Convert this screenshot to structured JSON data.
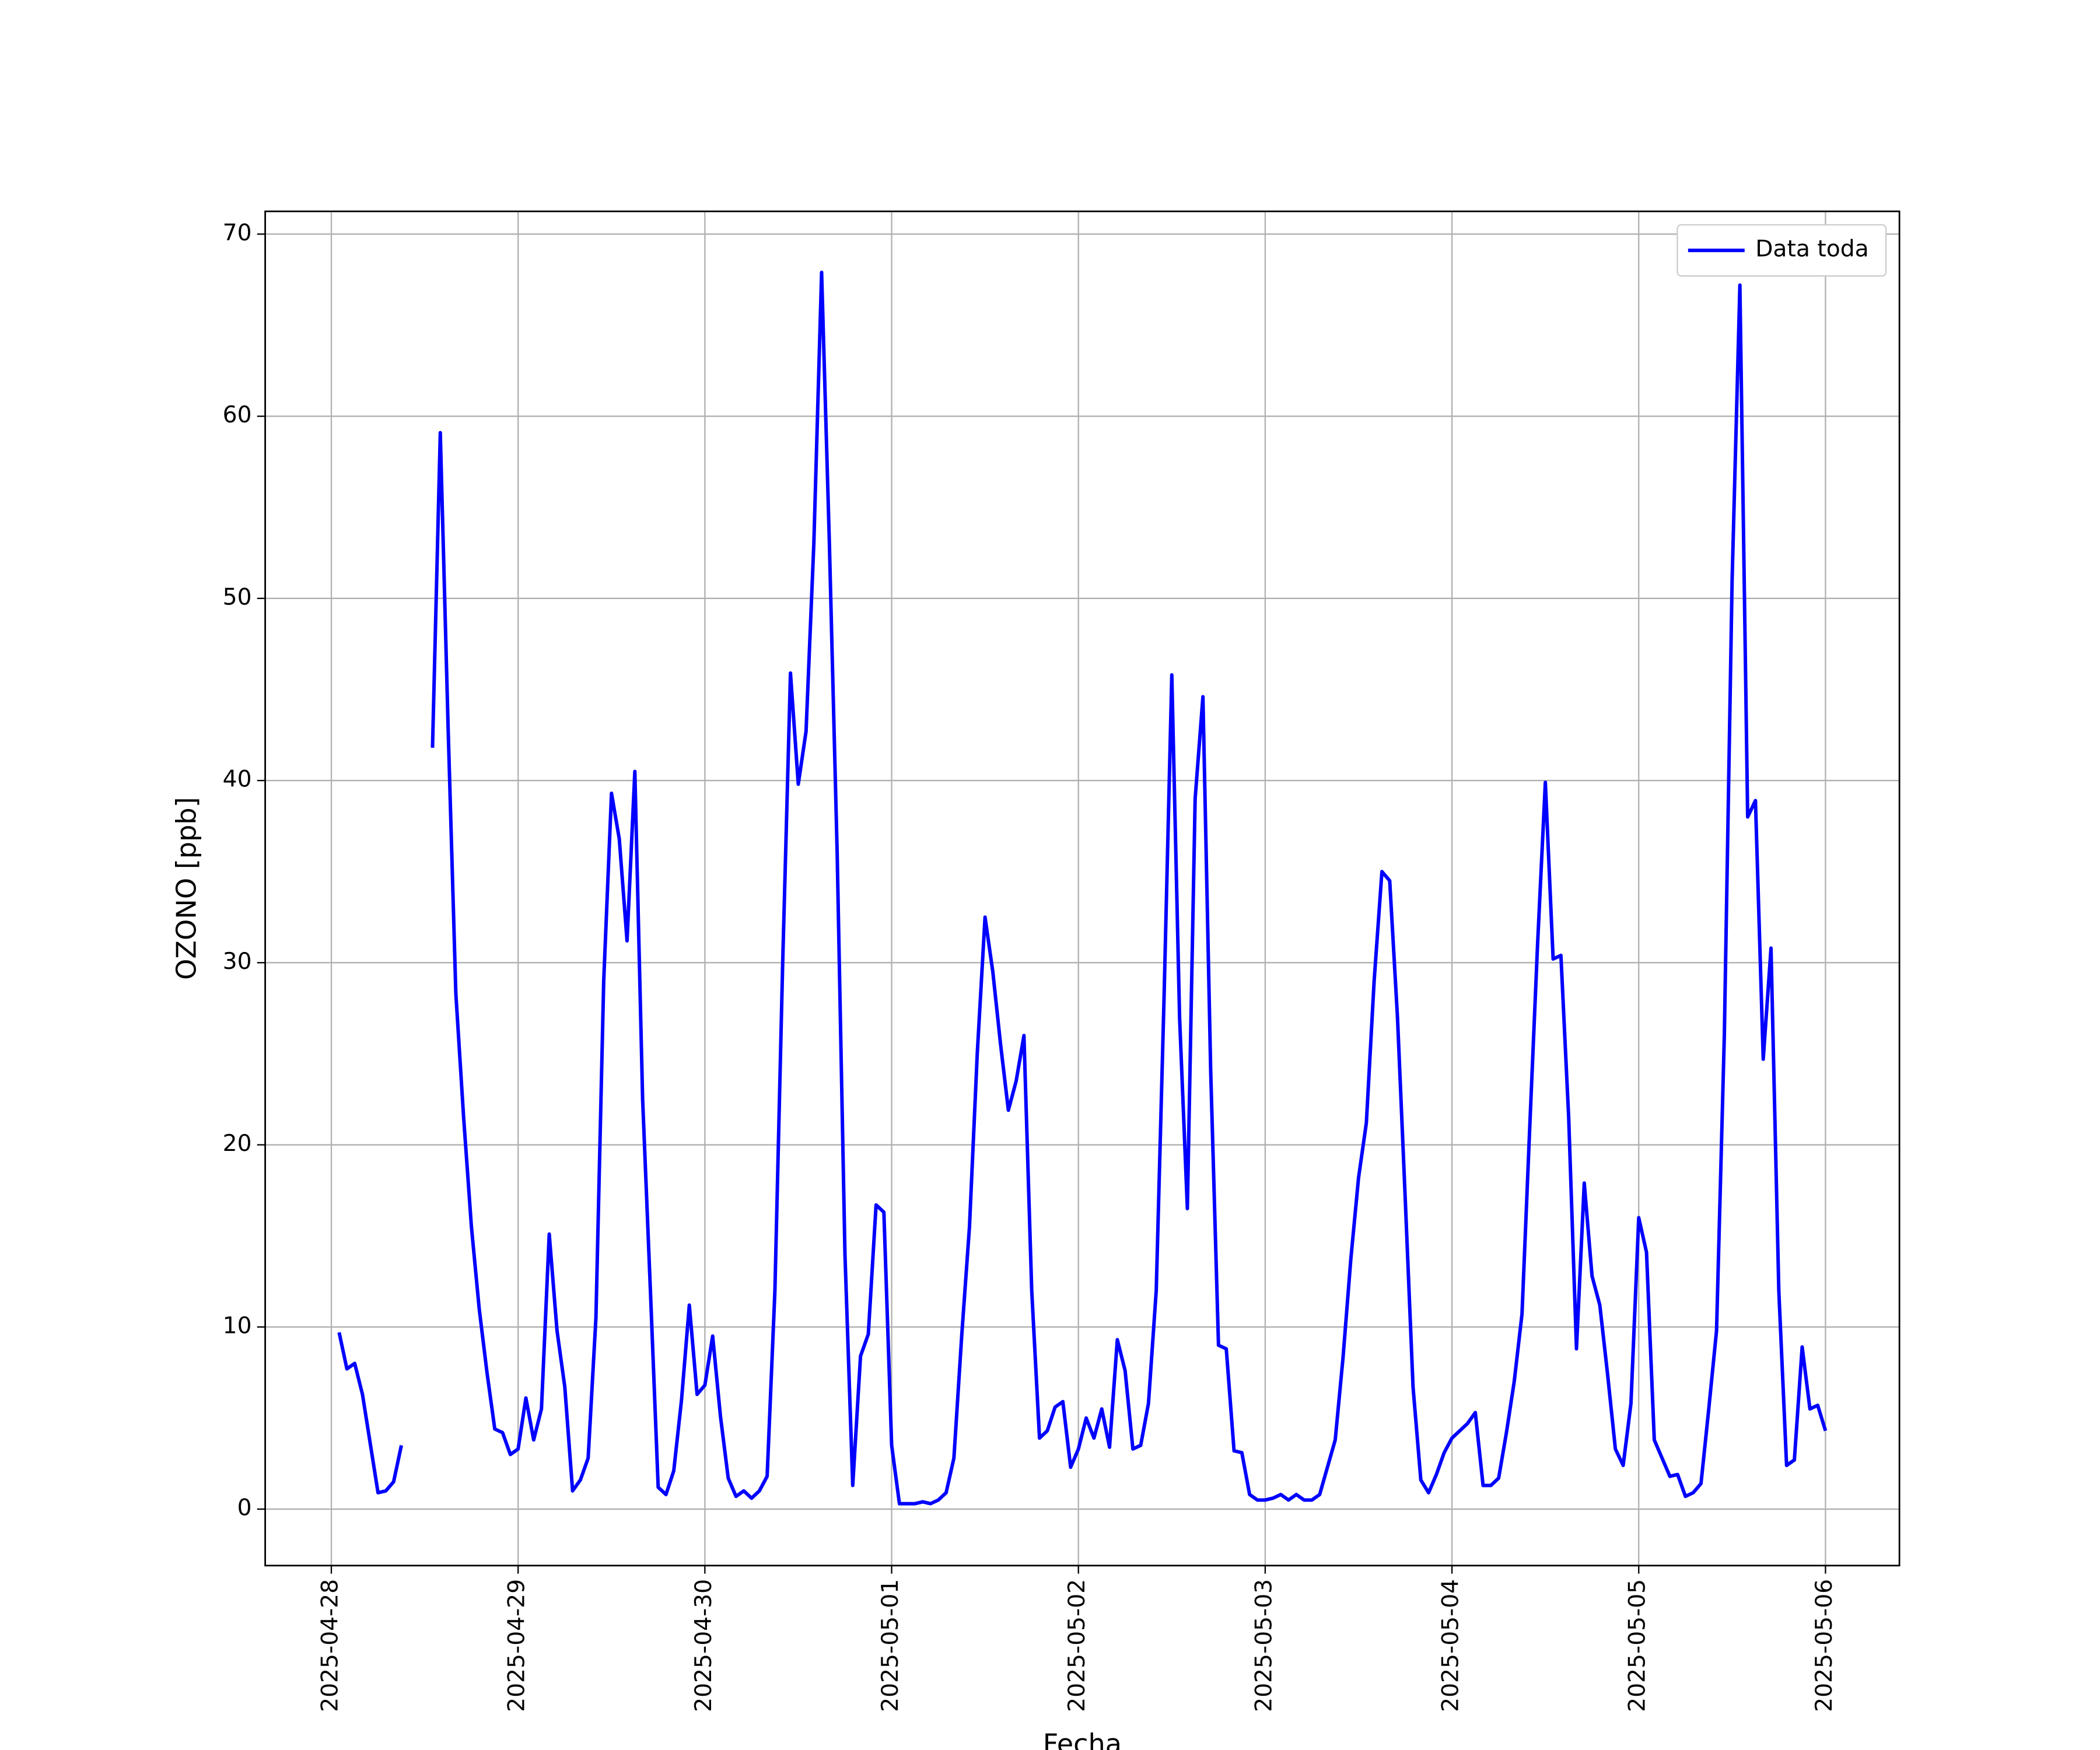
{
  "chart_data": {
    "type": "line",
    "xlabel": "Fecha",
    "ylabel": "OZONO [ppb]",
    "x": [
      1,
      2,
      3,
      4,
      5,
      6,
      7,
      8,
      9,
      10,
      11,
      12,
      13,
      14,
      15,
      16,
      17,
      18,
      19,
      20,
      21,
      22,
      23,
      24,
      25,
      26,
      27,
      28,
      29,
      30,
      31,
      32,
      33,
      34,
      35,
      36,
      37,
      38,
      39,
      40,
      41,
      42,
      43,
      44,
      45,
      46,
      47,
      48,
      49,
      50,
      51,
      52,
      53,
      54,
      55,
      56,
      57,
      58,
      59,
      60,
      61,
      62,
      63,
      64,
      65,
      66,
      67,
      68,
      69,
      70,
      71,
      72,
      73,
      74,
      75,
      76,
      77,
      78,
      79,
      80,
      81,
      82,
      83,
      84,
      85,
      86,
      87,
      88,
      89,
      90,
      91,
      92,
      93,
      94,
      95,
      96,
      97,
      98,
      99,
      100,
      101,
      102,
      103,
      104,
      105,
      106,
      107,
      108,
      109,
      110,
      111,
      112,
      113,
      114,
      115,
      116,
      117,
      118,
      119,
      120,
      121,
      122,
      123,
      124,
      125,
      126,
      127,
      128,
      129,
      130,
      131,
      132,
      133,
      134,
      135,
      136,
      137,
      138,
      139,
      140,
      141,
      142,
      143,
      144,
      145,
      146,
      147,
      148,
      149,
      150,
      151,
      152,
      153,
      154,
      155,
      156,
      157,
      158,
      159,
      160,
      161,
      162,
      163,
      164,
      165,
      166,
      167,
      168,
      169,
      170,
      171,
      172,
      173,
      174,
      175,
      176,
      177,
      178,
      179,
      180,
      181,
      182,
      183,
      184,
      185,
      186,
      187,
      188,
      189,
      190,
      191,
      192
    ],
    "series": [
      {
        "name": "Data toda",
        "color": "#0000ff",
        "values": [
          9.7,
          7.7,
          8.0,
          6.3,
          3.6,
          0.9,
          1.0,
          1.5,
          3.5,
          null,
          null,
          null,
          41.8,
          59.1,
          43,
          28.3,
          21.5,
          15.5,
          11,
          7.5,
          4.4,
          4.2,
          3.0,
          3.3,
          6.1,
          3.8,
          5.5,
          15.1,
          9.8,
          6.7,
          1.0,
          1.6,
          2.8,
          10.5,
          29,
          39.3,
          36.8,
          31.2,
          40.5,
          22.5,
          12,
          1.2,
          0.8,
          2.1,
          6,
          11.2,
          6.3,
          6.8,
          9.5,
          5.1,
          1.7,
          0.7,
          1.0,
          0.6,
          1.0,
          1.8,
          12,
          30,
          45.9,
          39.8,
          42.7,
          53,
          67.9,
          53,
          36,
          14,
          1.3,
          8.4,
          9.6,
          16.7,
          16.3,
          3.5,
          0.3,
          0.3,
          0.3,
          0.4,
          0.3,
          0.5,
          0.9,
          2.8,
          9.5,
          15.5,
          25,
          32.5,
          29.5,
          25.5,
          21.9,
          23.5,
          26,
          12,
          3.9,
          4.3,
          5.6,
          5.9,
          2.3,
          3.3,
          5.0,
          3.9,
          5.5,
          3.4,
          9.3,
          7.6,
          3.3,
          3.5,
          5.8,
          12,
          28,
          45.8,
          27,
          16.5,
          39,
          44.6,
          24,
          9.0,
          8.8,
          3.2,
          3.1,
          0.8,
          0.5,
          0.5,
          0.6,
          0.8,
          0.5,
          0.8,
          0.5,
          0.5,
          0.8,
          2.3,
          3.8,
          8.3,
          13.7,
          18.2,
          21.2,
          29,
          35,
          34.5,
          27,
          17,
          6.7,
          1.6,
          0.9,
          1.9,
          3.1,
          3.9,
          4.3,
          4.7,
          5.3,
          1.3,
          1.3,
          1.7,
          4.2,
          7,
          10.7,
          21,
          31,
          39.9,
          30.2,
          30.4,
          21.5,
          8.8,
          17.9,
          12.8,
          11.2,
          7.4,
          3.3,
          2.4,
          5.8,
          16,
          14.1,
          3.8,
          2.8,
          1.8,
          1.9,
          0.7,
          0.9,
          1.4,
          5.5,
          9.8,
          26,
          51,
          67.2,
          38,
          38.9,
          24.7,
          30.8,
          12,
          2.4,
          2.7,
          8.9,
          5.5,
          5.7,
          4.3
        ]
      }
    ],
    "xlim": [
      -8.5,
      201.5
    ],
    "xticks": [
      {
        "value": 0,
        "label": "2025-04-28"
      },
      {
        "value": 24,
        "label": "2025-04-29"
      },
      {
        "value": 48,
        "label": "2025-04-30"
      },
      {
        "value": 72,
        "label": "2025-05-01"
      },
      {
        "value": 96,
        "label": "2025-05-02"
      },
      {
        "value": 120,
        "label": "2025-05-03"
      },
      {
        "value": 144,
        "label": "2025-05-04"
      },
      {
        "value": 168,
        "label": "2025-05-05"
      },
      {
        "value": 192,
        "label": "2025-05-06"
      }
    ],
    "ylim": [
      -3.1,
      71.25
    ],
    "yticks": [
      0,
      10,
      20,
      30,
      40,
      50,
      60,
      70
    ],
    "grid": true,
    "legend": "upper right"
  }
}
